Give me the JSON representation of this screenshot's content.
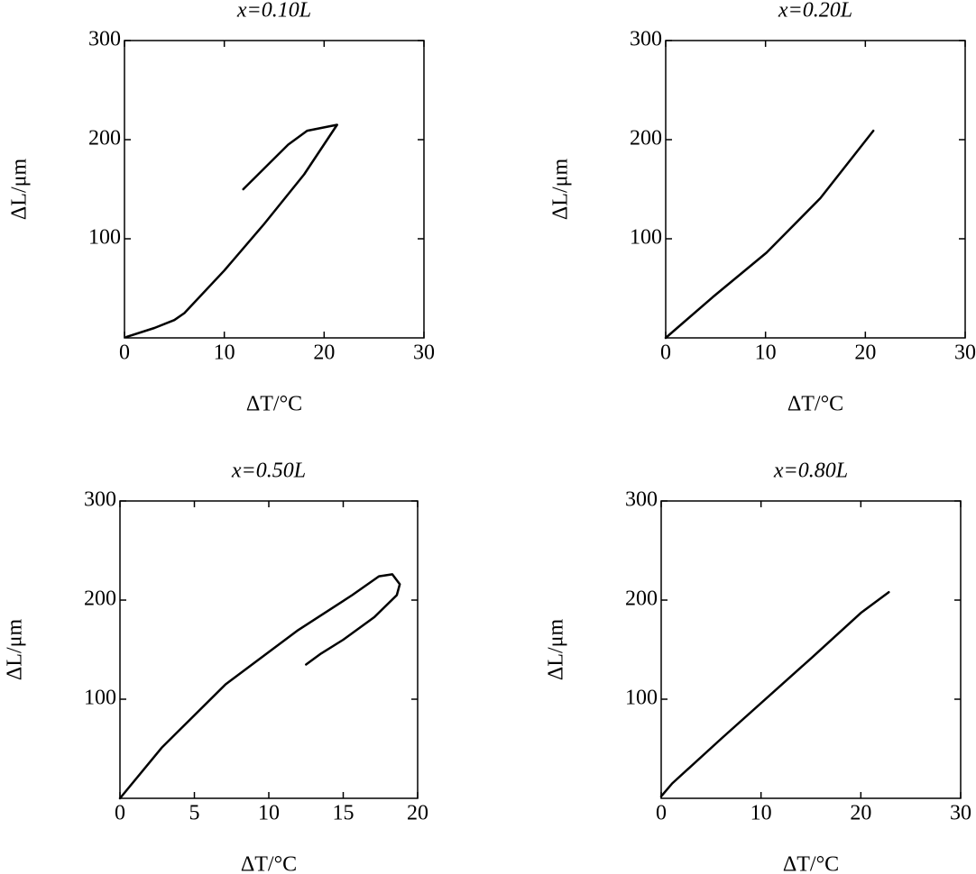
{
  "chart_data": [
    {
      "type": "line",
      "title": "x=0.10L",
      "xlabel": "ΔT/°C",
      "ylabel": "ΔL/μm",
      "x": [
        0.2,
        3,
        5,
        6,
        10,
        14,
        18,
        21.3,
        18.3,
        16.4,
        14.6,
        11.9
      ],
      "values": [
        1,
        10,
        18,
        25,
        68,
        115,
        165,
        215,
        209,
        195,
        177,
        150
      ],
      "color": "#000000",
      "xlim": [
        0,
        30
      ],
      "xticks": [
        0,
        10,
        20,
        30
      ],
      "ylim": [
        0,
        300
      ],
      "yticks": [
        100,
        200,
        300
      ],
      "grid": false
    },
    {
      "type": "line",
      "title": "x=0.20L",
      "xlabel": "ΔT/°C",
      "ylabel": "ΔL/μm",
      "x": [
        0,
        4.7,
        10.1,
        15.5,
        20.8
      ],
      "values": [
        0,
        41,
        86,
        141,
        209
      ],
      "color": "#000000",
      "xlim": [
        0,
        30
      ],
      "xticks": [
        0,
        10,
        20,
        30
      ],
      "ylim": [
        0,
        300
      ],
      "yticks": [
        100,
        200,
        300
      ],
      "grid": false
    },
    {
      "type": "line",
      "title": "x=0.50L",
      "xlabel": "ΔT/°C",
      "ylabel": "ΔL/μm",
      "x": [
        0,
        2.8,
        7.1,
        11.9,
        15.6,
        17.4,
        18.3,
        18.8,
        18.6,
        17.1,
        15,
        13.5,
        12.5
      ],
      "values": [
        0,
        51,
        115,
        169,
        205,
        224,
        226,
        216,
        205,
        183,
        160,
        146,
        135
      ],
      "color": "#000000",
      "xlim": [
        0,
        20
      ],
      "xticks": [
        0,
        5,
        10,
        15,
        20
      ],
      "ylim": [
        0,
        300
      ],
      "yticks": [
        100,
        200,
        300
      ],
      "grid": false
    },
    {
      "type": "line",
      "title": "x=0.80L",
      "xlabel": "ΔT/°C",
      "ylabel": "ΔL/μm",
      "x": [
        0,
        1.1,
        6,
        15.1,
        20,
        22.8
      ],
      "values": [
        2,
        15,
        60,
        142,
        187,
        208
      ],
      "color": "#000000",
      "xlim": [
        0,
        30
      ],
      "xticks": [
        0,
        10,
        20,
        30
      ],
      "ylim": [
        0,
        300
      ],
      "yticks": [
        100,
        200,
        300
      ],
      "grid": false
    }
  ]
}
